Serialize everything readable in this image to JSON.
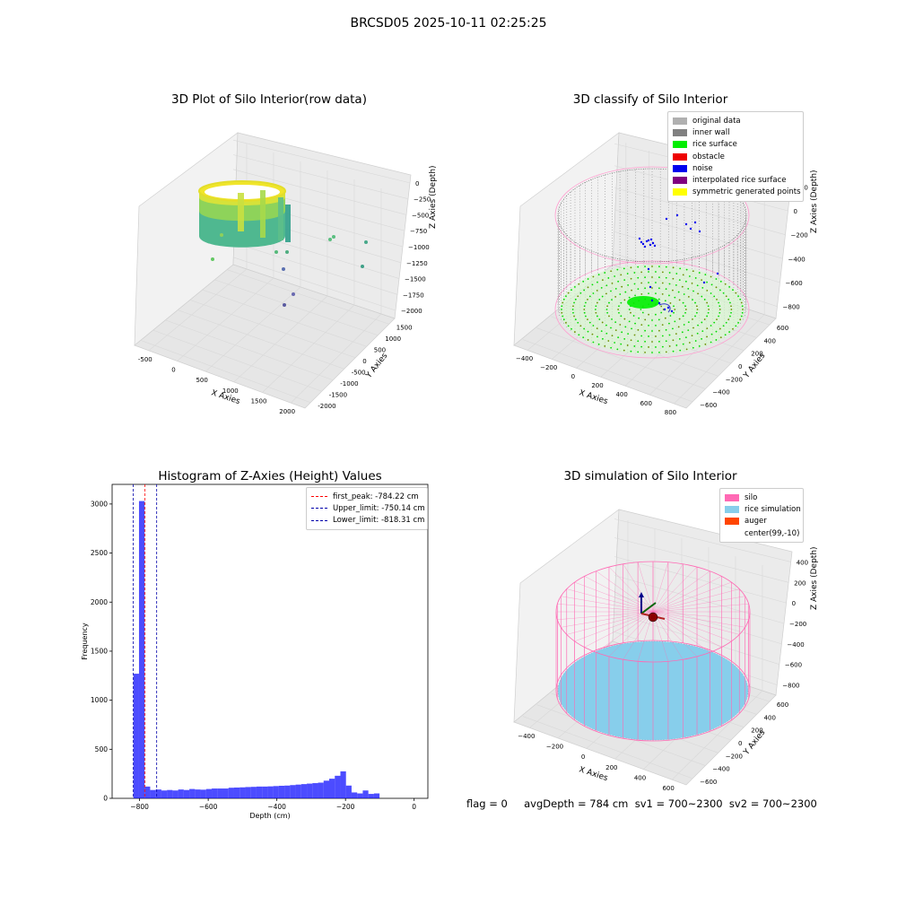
{
  "figure": {
    "suptitle": "BRCSD05 2025-10-11 02:25:25",
    "footer": "flag = 0     avgDepth = 784 cm  sv1 = 700~2300  sv2 = 700~2300"
  },
  "panels": {
    "raw": {
      "title": "3D Plot of Silo Interior(row data)",
      "xlabel": "X Axies",
      "ylabel": "Y Axies",
      "zlabel": "Z Axies (Depth)",
      "xticks": [
        "-500",
        "0",
        "500",
        "1000",
        "1500",
        "2000"
      ],
      "yticks": [
        "-2000",
        "-1500",
        "-1000",
        "-500",
        "0",
        "500",
        "1000",
        "1500"
      ],
      "zticks": [
        "0",
        "−250",
        "−500",
        "−750",
        "−1000",
        "−1250",
        "−1500",
        "−1750",
        "−2000"
      ]
    },
    "classify": {
      "title": "3D classify of Silo Interior",
      "xlabel": "X Axies",
      "ylabel": "Y Axies",
      "zlabel": "Z Axies (Depth)",
      "xticks": [
        "−400",
        "−200",
        "0",
        "200",
        "400",
        "600",
        "800"
      ],
      "yticks": [
        "−600",
        "−400",
        "−200",
        "0",
        "200",
        "400",
        "600"
      ],
      "zticks": [
        "200",
        "0",
        "−200",
        "−400",
        "−600",
        "−800"
      ],
      "legend": [
        {
          "label": "original data",
          "color": "#b0b0b0"
        },
        {
          "label": "inner wall",
          "color": "#808080"
        },
        {
          "label": "rice surface",
          "color": "#00ee00"
        },
        {
          "label": "obstacle",
          "color": "#ee0000"
        },
        {
          "label": "noise",
          "color": "#0000ee"
        },
        {
          "label": "interpolated rice surface",
          "color": "#800080"
        },
        {
          "label": "symmetric generated points",
          "color": "#ffff00"
        }
      ]
    },
    "simulation": {
      "title": "3D simulation of Silo Interior",
      "xlabel": "X Axies",
      "ylabel": "Y Axies",
      "zlabel": "Z Axies (Depth)",
      "xticks": [
        "−400",
        "−200",
        "0",
        "200",
        "400",
        "600"
      ],
      "yticks": [
        "−600",
        "−400",
        "−200",
        "0",
        "200",
        "400",
        "600"
      ],
      "zticks": [
        "400",
        "200",
        "0",
        "−200",
        "−400",
        "−600",
        "−800"
      ],
      "legend": [
        {
          "label": "silo",
          "color": "#ff69b4"
        },
        {
          "label": "rice simulation",
          "color": "#87ceeb"
        },
        {
          "label": "auger",
          "color": "#ff4500"
        },
        {
          "label": "center(99,-10)",
          "color": "#ffffff"
        }
      ]
    }
  },
  "chart_data": {
    "type": "bar",
    "title": "Histogram of Z-Axies (Height) Values",
    "xlabel": "Depth (cm)",
    "ylabel": "Frequency",
    "xlim": [
      -880,
      40
    ],
    "ylim": [
      0,
      3200
    ],
    "xticks": [
      -800,
      -600,
      -400,
      -200,
      0
    ],
    "yticks": [
      0,
      500,
      1000,
      1500,
      2000,
      2500,
      3000
    ],
    "bin_start": -818,
    "bin_width": 16.3,
    "values": [
      1270,
      3030,
      120,
      85,
      90,
      80,
      85,
      80,
      90,
      85,
      95,
      90,
      88,
      95,
      100,
      100,
      100,
      108,
      110,
      112,
      115,
      117,
      120,
      120,
      122,
      125,
      128,
      130,
      135,
      140,
      145,
      150,
      155,
      160,
      180,
      200,
      230,
      275,
      130,
      60,
      50,
      80,
      45,
      50
    ],
    "bar_color": "#0000ff",
    "lines": [
      {
        "label": "first_peak: -784.22 cm",
        "x": -784.22,
        "color": "#ff0000"
      },
      {
        "label": "Upper_limit: -750.14 cm",
        "x": -750.14,
        "color": "#0000aa"
      },
      {
        "label": "Lower_limit: -818.31 cm",
        "x": -818.31,
        "color": "#0000aa"
      }
    ],
    "legend_position": "top-right"
  }
}
